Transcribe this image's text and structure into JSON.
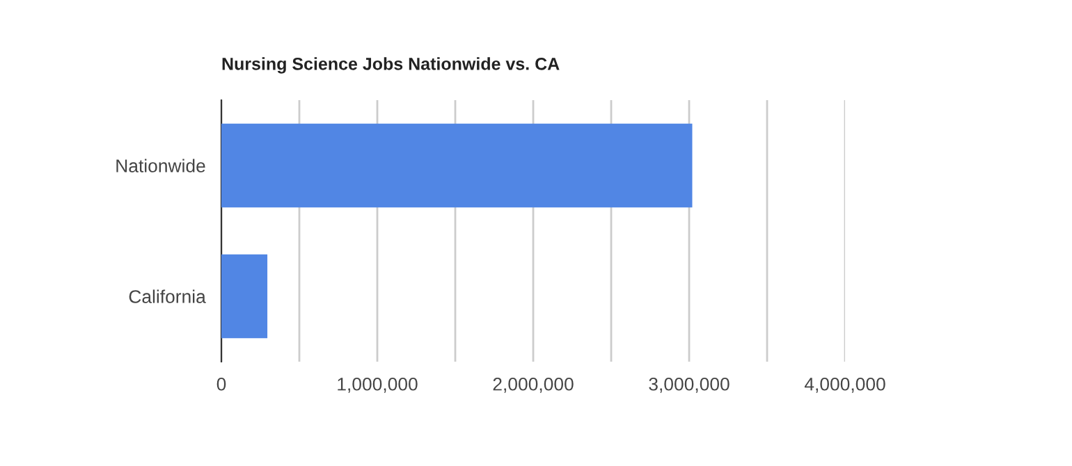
{
  "chart_data": {
    "type": "bar",
    "orientation": "horizontal",
    "title": "Nursing Science Jobs Nationwide vs. CA",
    "categories": [
      "Nationwide",
      "California"
    ],
    "series": [
      {
        "color": "#5186e4",
        "values": [
          3020000,
          295000
        ]
      }
    ],
    "xlim": [
      0,
      4000000
    ],
    "xticks": [
      0,
      {
        "value": 500000,
        "label": null
      },
      {
        "value": 1000000,
        "label": "1,000,000"
      },
      {
        "value": 1500000,
        "label": null
      },
      {
        "value": 2000000,
        "label": "2,000,000"
      },
      {
        "value": 2500000,
        "label": null
      },
      {
        "value": 3000000,
        "label": "3,000,000"
      },
      {
        "value": 3500000,
        "label": null
      },
      {
        "value": 4000000,
        "label": "4,000,000"
      }
    ],
    "grid": "x",
    "legend": false
  }
}
